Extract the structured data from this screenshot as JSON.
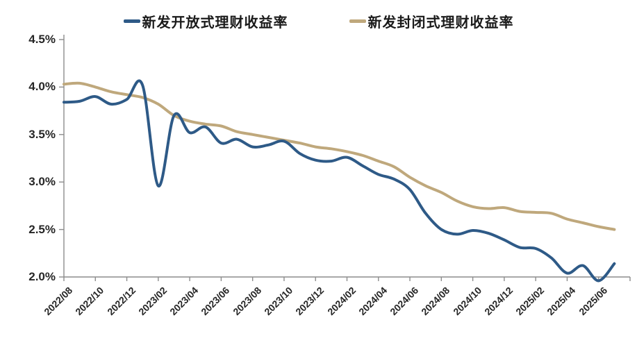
{
  "chart_data": {
    "type": "line",
    "title": "",
    "x_months": [
      "2022/08",
      "2022/09",
      "2022/10",
      "2022/11",
      "2022/12",
      "2023/01",
      "2023/02",
      "2023/03",
      "2023/04",
      "2023/05",
      "2023/06",
      "2023/07",
      "2023/08",
      "2023/09",
      "2023/10",
      "2023/11",
      "2023/12",
      "2024/01",
      "2024/02",
      "2024/03",
      "2024/04",
      "2024/05",
      "2024/06",
      "2024/07",
      "2024/08",
      "2024/09",
      "2024/10",
      "2024/11",
      "2024/12",
      "2025/01",
      "2025/02",
      "2025/03",
      "2025/04",
      "2025/05",
      "2025/06",
      "2025/07"
    ],
    "series": [
      {
        "name": "新发开放式理财收益率",
        "color": "#2e5a87",
        "values": [
          3.84,
          3.85,
          3.9,
          3.82,
          3.87,
          4.02,
          2.96,
          3.7,
          3.52,
          3.58,
          3.41,
          3.45,
          3.37,
          3.39,
          3.43,
          3.3,
          3.23,
          3.22,
          3.26,
          3.17,
          3.08,
          3.03,
          2.92,
          2.67,
          2.5,
          2.45,
          2.49,
          2.46,
          2.39,
          2.31,
          2.3,
          2.2,
          2.04,
          2.12,
          1.96,
          2.14
        ]
      },
      {
        "name": "新发封闭式理财收益率",
        "color": "#bfa87c",
        "values": [
          4.03,
          4.04,
          4.0,
          3.95,
          3.92,
          3.89,
          3.82,
          3.7,
          3.64,
          3.61,
          3.59,
          3.53,
          3.5,
          3.47,
          3.44,
          3.41,
          3.37,
          3.35,
          3.32,
          3.28,
          3.22,
          3.16,
          3.05,
          2.96,
          2.89,
          2.8,
          2.74,
          2.72,
          2.73,
          2.69,
          2.68,
          2.67,
          2.61,
          2.57,
          2.53,
          2.5
        ]
      }
    ],
    "ylim": [
      2.0,
      4.5
    ],
    "ytick_labels": [
      "4.5%",
      "4.0%",
      "3.5%",
      "3.0%",
      "2.5%",
      "2.0%"
    ],
    "xtick_labels": [
      "2022/08",
      "2022/10",
      "2022/12",
      "2023/02",
      "2023/04",
      "2023/06",
      "2023/08",
      "2023/10",
      "2023/12",
      "2024/02",
      "2024/04",
      "2024/06",
      "2024/08",
      "2024/10",
      "2024/12",
      "2025/02",
      "2025/04",
      "2025/06"
    ],
    "grid": false,
    "legend_position": "top",
    "axis_color": "#8c8c8c",
    "tick_label_color": "#262626",
    "legend_text_color": "#1a1a1a"
  }
}
